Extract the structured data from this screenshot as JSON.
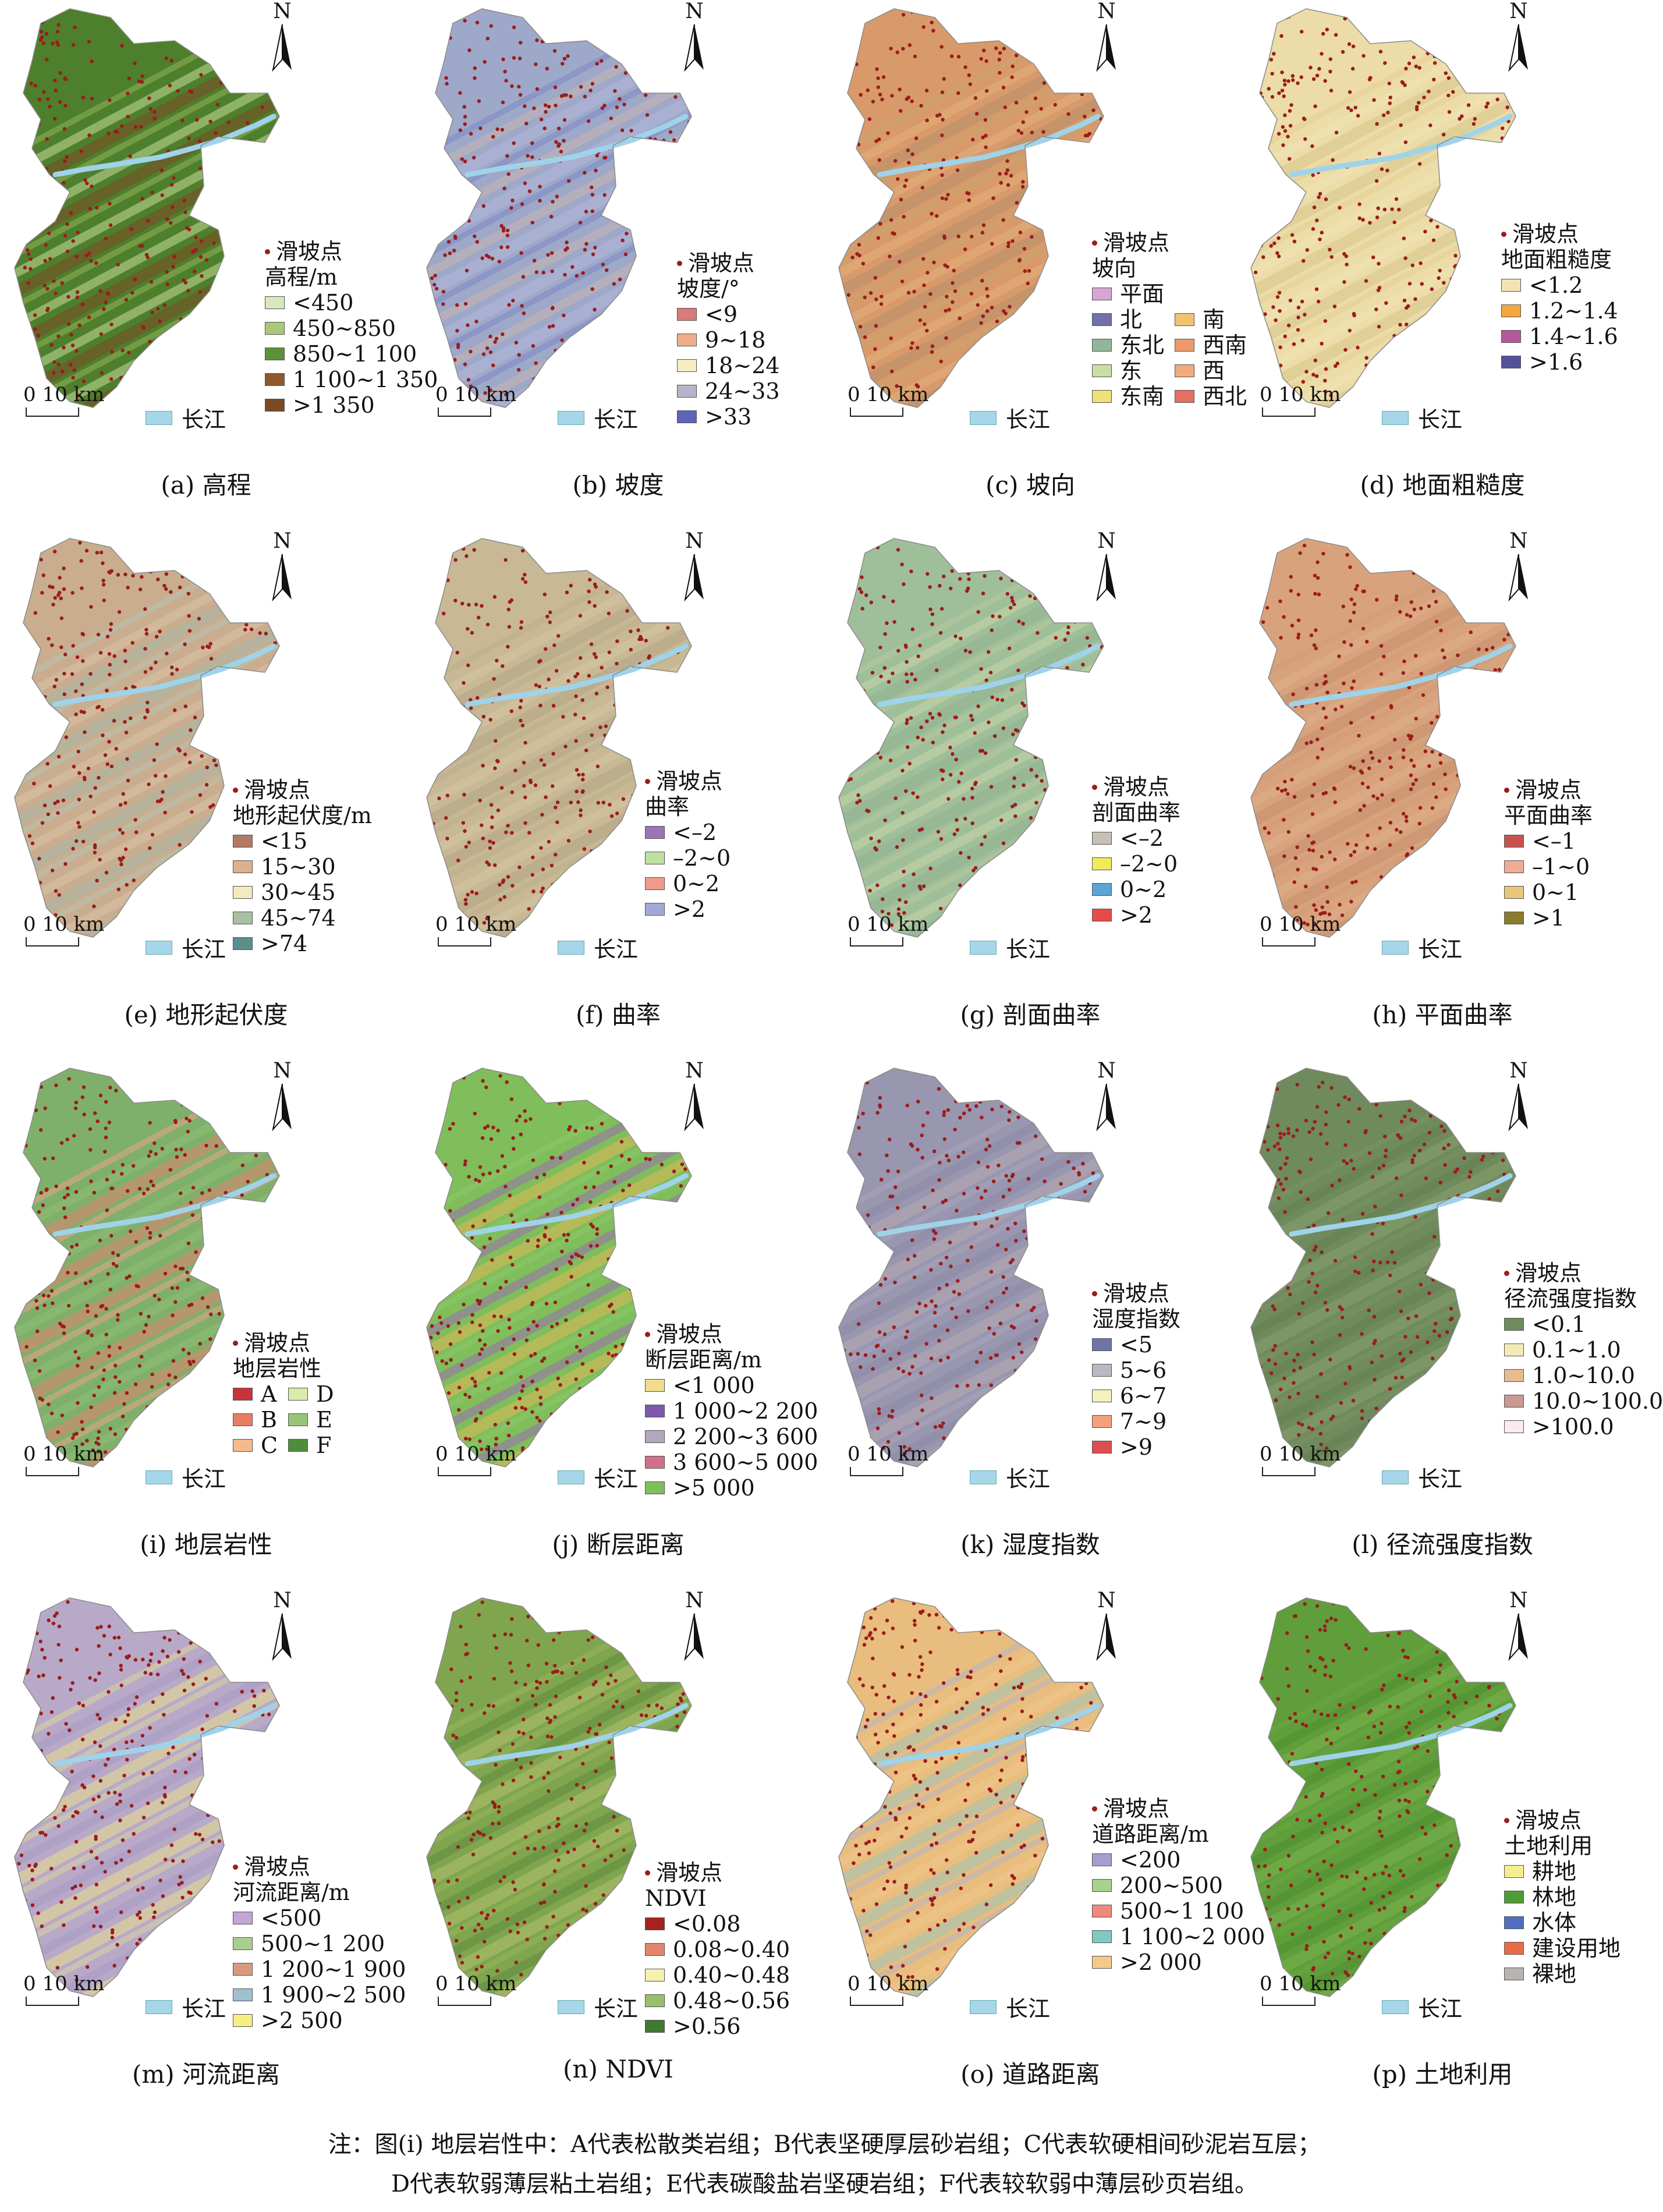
{
  "common": {
    "north_label": "N",
    "scale_label": "0  10 km",
    "river_label": "长江",
    "point_label": "滑坡点"
  },
  "panels": [
    {
      "caption": "(a) 高程",
      "title": "高程/m",
      "colors": [
        "#4e7f2c",
        "#8fb35a",
        "#c7dd9a",
        "#7a4a26"
      ],
      "legend": [
        {
          "label": "<450",
          "color": "#d8e9bd"
        },
        {
          "label": "450~850",
          "color": "#a9c97a"
        },
        {
          "label": "850~1 100",
          "color": "#5d9337"
        },
        {
          "label": "1 100~1 350",
          "color": "#8e5a2b"
        },
        {
          "label": ">1 350",
          "color": "#7a4a26"
        }
      ]
    },
    {
      "caption": "(b) 坡度",
      "title": "坡度/°",
      "colors": [
        "#9ea8c9",
        "#7d86c4",
        "#c9b5b0",
        "#b5b7d9"
      ],
      "legend": [
        {
          "label": "<9",
          "color": "#d77b7b"
        },
        {
          "label": "9~18",
          "color": "#eeae8e"
        },
        {
          "label": "18~24",
          "color": "#f6eec0"
        },
        {
          "label": "24~33",
          "color": "#b7b3c9"
        },
        {
          "label": ">33",
          "color": "#5e64b8"
        }
      ]
    },
    {
      "caption": "(c) 坡向",
      "title": "坡向",
      "colors": [
        "#d89a6a",
        "#c9a46e",
        "#e1b07a",
        "#b78f6a"
      ],
      "two_col": true,
      "legend": [
        {
          "label": "平面",
          "color": "#d7a6d2"
        },
        {
          "label": "",
          "color": ""
        },
        {
          "label": "北",
          "color": "#7170a8"
        },
        {
          "label": "南",
          "color": "#f1c26f"
        },
        {
          "label": "东北",
          "color": "#93b69a"
        },
        {
          "label": "西南",
          "color": "#ee9a6a"
        },
        {
          "label": "东",
          "color": "#c8dea2"
        },
        {
          "label": "西",
          "color": "#f3a97d"
        },
        {
          "label": "东南",
          "color": "#efe07a"
        },
        {
          "label": "西北",
          "color": "#e5705f"
        }
      ]
    },
    {
      "caption": "(d) 地面粗糙度",
      "title": "地面粗糙度",
      "colors": [
        "#ecdca8",
        "#e3cf92",
        "#f0e3b5",
        "#d9c58a"
      ],
      "legend": [
        {
          "label": "<1.2",
          "color": "#f3e3b1"
        },
        {
          "label": "1.2~1.4",
          "color": "#f2a83c"
        },
        {
          "label": "1.4~1.6",
          "color": "#b5579c"
        },
        {
          "label": ">1.6",
          "color": "#54509a"
        }
      ]
    },
    {
      "caption": "(e) 地形起伏度",
      "title": "地形起伏度/m",
      "colors": [
        "#c9ad8e",
        "#b6c2b5",
        "#d9c3a8",
        "#a7b7a8"
      ],
      "legend": [
        {
          "label": "<15",
          "color": "#b27a62"
        },
        {
          "label": "15~30",
          "color": "#dbb08f"
        },
        {
          "label": "30~45",
          "color": "#f3ebbd"
        },
        {
          "label": "45~74",
          "color": "#a9bfa2"
        },
        {
          "label": ">74",
          "color": "#5f8d8c"
        }
      ]
    },
    {
      "caption": "(f) 曲率",
      "title": "曲率",
      "colors": [
        "#c8b896",
        "#bcae8c",
        "#d4c6a3",
        "#b3a585"
      ],
      "legend": [
        {
          "label": "<–2",
          "color": "#9a74b4"
        },
        {
          "label": "–2~0",
          "color": "#bfe0a0"
        },
        {
          "label": "0~2",
          "color": "#ef9a8d"
        },
        {
          "label": ">2",
          "color": "#a4a8d8"
        }
      ]
    },
    {
      "caption": "(g) 剖面曲率",
      "title": "剖面曲率",
      "colors": [
        "#9fbf9a",
        "#b4c99f",
        "#c9d6a8",
        "#8fb192"
      ],
      "legend": [
        {
          "label": "<–2",
          "color": "#c8c0b6"
        },
        {
          "label": "–2~0",
          "color": "#f1ea5a"
        },
        {
          "label": "0~2",
          "color": "#5da3d3"
        },
        {
          "label": ">2",
          "color": "#e84a4a"
        }
      ]
    },
    {
      "caption": "(h) 平面曲率",
      "title": "平面曲率",
      "colors": [
        "#d8a37c",
        "#cf9a74",
        "#deae88",
        "#c69070"
      ],
      "legend": [
        {
          "label": "<–1",
          "color": "#c8524f"
        },
        {
          "label": "–1~0",
          "color": "#f1ac95"
        },
        {
          "label": "0~1",
          "color": "#e8c67a"
        },
        {
          "label": ">1",
          "color": "#8a7b2e"
        }
      ]
    },
    {
      "caption": "(i) 地层岩性",
      "title": "地层岩性",
      "colors": [
        "#7fb06a",
        "#e9a28c",
        "#8fbe74",
        "#e0836f"
      ],
      "two_col": true,
      "legend": [
        {
          "label": "A",
          "color": "#c7333a"
        },
        {
          "label": "D",
          "color": "#d9eba9"
        },
        {
          "label": "B",
          "color": "#ea7c66"
        },
        {
          "label": "E",
          "color": "#97c47b"
        },
        {
          "label": "C",
          "color": "#f6b98c"
        },
        {
          "label": "F",
          "color": "#4f8d3a"
        }
      ]
    },
    {
      "caption": "(j) 断层距离",
      "title": "断层距离/m",
      "colors": [
        "#7fbe5a",
        "#8cc66a",
        "#9b6db2",
        "#e2b65a"
      ],
      "legend": [
        {
          "label": "<1 000",
          "color": "#f0dc8e"
        },
        {
          "label": "1 000~2 200",
          "color": "#7e59aa"
        },
        {
          "label": "2 200~3 600",
          "color": "#b3a7bf"
        },
        {
          "label": "3 600~5 000",
          "color": "#d0708a"
        },
        {
          "label": ">5 000",
          "color": "#7fbe5a"
        }
      ]
    },
    {
      "caption": "(k) 湿度指数",
      "title": "湿度指数",
      "colors": [
        "#9996b0",
        "#a9a6b9",
        "#8c8aa6",
        "#b7a9b0"
      ],
      "legend": [
        {
          "label": "<5",
          "color": "#6f73a8"
        },
        {
          "label": "5~6",
          "color": "#b9b9c1"
        },
        {
          "label": "6~7",
          "color": "#f5f0c0"
        },
        {
          "label": "7~9",
          "color": "#f2a07d"
        },
        {
          "label": ">9",
          "color": "#de4e4e"
        }
      ]
    },
    {
      "caption": "(l) 径流强度指数",
      "title": "径流强度指数",
      "colors": [
        "#6f8a5c",
        "#7a9366",
        "#647f53",
        "#86a070"
      ],
      "legend": [
        {
          "label": "<0.1",
          "color": "#6e8d5c"
        },
        {
          "label": "0.1~1.0",
          "color": "#f4eab7"
        },
        {
          "label": "1.0~10.0",
          "color": "#e7bb8f"
        },
        {
          "label": "10.0~100.0",
          "color": "#c99a92"
        },
        {
          "label": ">100.0",
          "color": "#fbeaf0"
        }
      ]
    },
    {
      "caption": "(m) 河流距离",
      "title": "河流距离/m",
      "colors": [
        "#b9a9c9",
        "#d9d59a",
        "#a79ac2",
        "#e8df88"
      ],
      "legend": [
        {
          "label": "<500",
          "color": "#c3a6d6"
        },
        {
          "label": "500~1 200",
          "color": "#a9cf8c"
        },
        {
          "label": "1 200~1 900",
          "color": "#d89a7e"
        },
        {
          "label": "1 900~2 500",
          "color": "#9fc1cf"
        },
        {
          "label": ">2 500",
          "color": "#f5ee83"
        }
      ]
    },
    {
      "caption": "(n) NDVI",
      "title": "NDVI",
      "colors": [
        "#7fa64f",
        "#9bb55c",
        "#5f8a3e",
        "#b4c06e"
      ],
      "legend": [
        {
          "label": "<0.08",
          "color": "#a4231c"
        },
        {
          "label": "0.08~0.40",
          "color": "#e0866a"
        },
        {
          "label": "0.40~0.48",
          "color": "#f7f1b0"
        },
        {
          "label": "0.48~0.56",
          "color": "#98c06a"
        },
        {
          "label": ">0.56",
          "color": "#3f7a2e"
        }
      ]
    },
    {
      "caption": "(o) 道路距离",
      "title": "道路距离/m",
      "colors": [
        "#e9bd7e",
        "#b4b4c2",
        "#f0c98a",
        "#9fc5b8"
      ],
      "legend": [
        {
          "label": "<200",
          "color": "#a99ccf"
        },
        {
          "label": "200~500",
          "color": "#a6d28c"
        },
        {
          "label": "500~1 100",
          "color": "#ef8a7c"
        },
        {
          "label": "1 100~2 000",
          "color": "#7fc9c3"
        },
        {
          "label": ">2 000",
          "color": "#f4ca8a"
        }
      ]
    },
    {
      "caption": "(p) 土地利用",
      "title": "土地利用",
      "colors": [
        "#5f9e3a",
        "#6aa843",
        "#4f8e30",
        "#7bb34e"
      ],
      "legend": [
        {
          "label": "耕地",
          "color": "#f4ee90"
        },
        {
          "label": "林地",
          "color": "#4f9b35"
        },
        {
          "label": "水体",
          "color": "#4f6ec0"
        },
        {
          "label": "建设用地",
          "color": "#ea6c45"
        },
        {
          "label": "裸地",
          "color": "#b8b4b0"
        }
      ]
    }
  ],
  "note": {
    "line1": "注：图(i) 地层岩性中：A代表松散类岩组；B代表坚硬厚层砂岩组；C代表软硬相间砂泥岩互层；",
    "line2": "D代表软弱薄层粘土岩组；E代表碳酸盐岩坚硬岩组；F代表较软弱中薄层砂页岩组。"
  }
}
